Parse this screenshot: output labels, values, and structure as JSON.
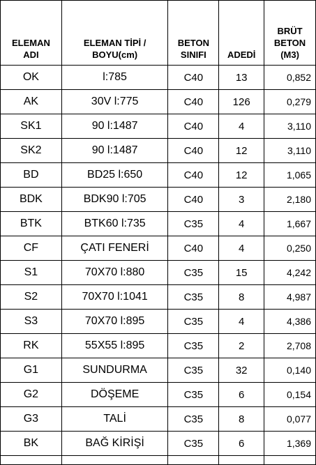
{
  "table": {
    "headers": {
      "name": [
        "ELEMAN",
        "ADI"
      ],
      "type": [
        "ELEMAN TİPİ /",
        "BOYU(cm)"
      ],
      "class": [
        "BETON",
        "SINIFI"
      ],
      "count": [
        "ADEDİ"
      ],
      "volume": [
        "BRÜT",
        "BETON",
        "(M3)"
      ]
    },
    "rows": [
      {
        "name": "OK",
        "type": "l:785",
        "class": "C40",
        "count": "13",
        "volume": "0,852"
      },
      {
        "name": "AK",
        "type": "30V l:775",
        "class": "C40",
        "count": "126",
        "volume": "0,279"
      },
      {
        "name": "SK1",
        "type": "90 l:1487",
        "class": "C40",
        "count": "4",
        "volume": "3,110"
      },
      {
        "name": "SK2",
        "type": "90 l:1487",
        "class": "C40",
        "count": "12",
        "volume": "3,110"
      },
      {
        "name": "BD",
        "type": "BD25 l:650",
        "class": "C40",
        "count": "12",
        "volume": "1,065"
      },
      {
        "name": "BDK",
        "type": "BDK90 l:705",
        "class": "C40",
        "count": "3",
        "volume": "2,180"
      },
      {
        "name": "BTK",
        "type": "BTK60 l:735",
        "class": "C35",
        "count": "4",
        "volume": "1,667"
      },
      {
        "name": "CF",
        "type": "ÇATI FENERİ",
        "class": "C40",
        "count": "4",
        "volume": "0,250"
      },
      {
        "name": "S1",
        "type": "70X70 l:880",
        "class": "C35",
        "count": "15",
        "volume": "4,242"
      },
      {
        "name": "S2",
        "type": "70X70 l:1041",
        "class": "C35",
        "count": "8",
        "volume": "4,987"
      },
      {
        "name": "S3",
        "type": "70X70 l:895",
        "class": "C35",
        "count": "4",
        "volume": "4,386"
      },
      {
        "name": "RK",
        "type": "55X55 l:895",
        "class": "C35",
        "count": "2",
        "volume": "2,708"
      },
      {
        "name": "G1",
        "type": "SUNDURMA",
        "class": "C35",
        "count": "32",
        "volume": "0,140"
      },
      {
        "name": "G2",
        "type": "DÖŞEME",
        "class": "C35",
        "count": "6",
        "volume": "0,154"
      },
      {
        "name": "G3",
        "type": "TALİ",
        "class": "C35",
        "count": "8",
        "volume": "0,077"
      },
      {
        "name": "BK",
        "type": "BAĞ KİRİŞİ",
        "class": "C35",
        "count": "6",
        "volume": "1,369"
      }
    ]
  }
}
